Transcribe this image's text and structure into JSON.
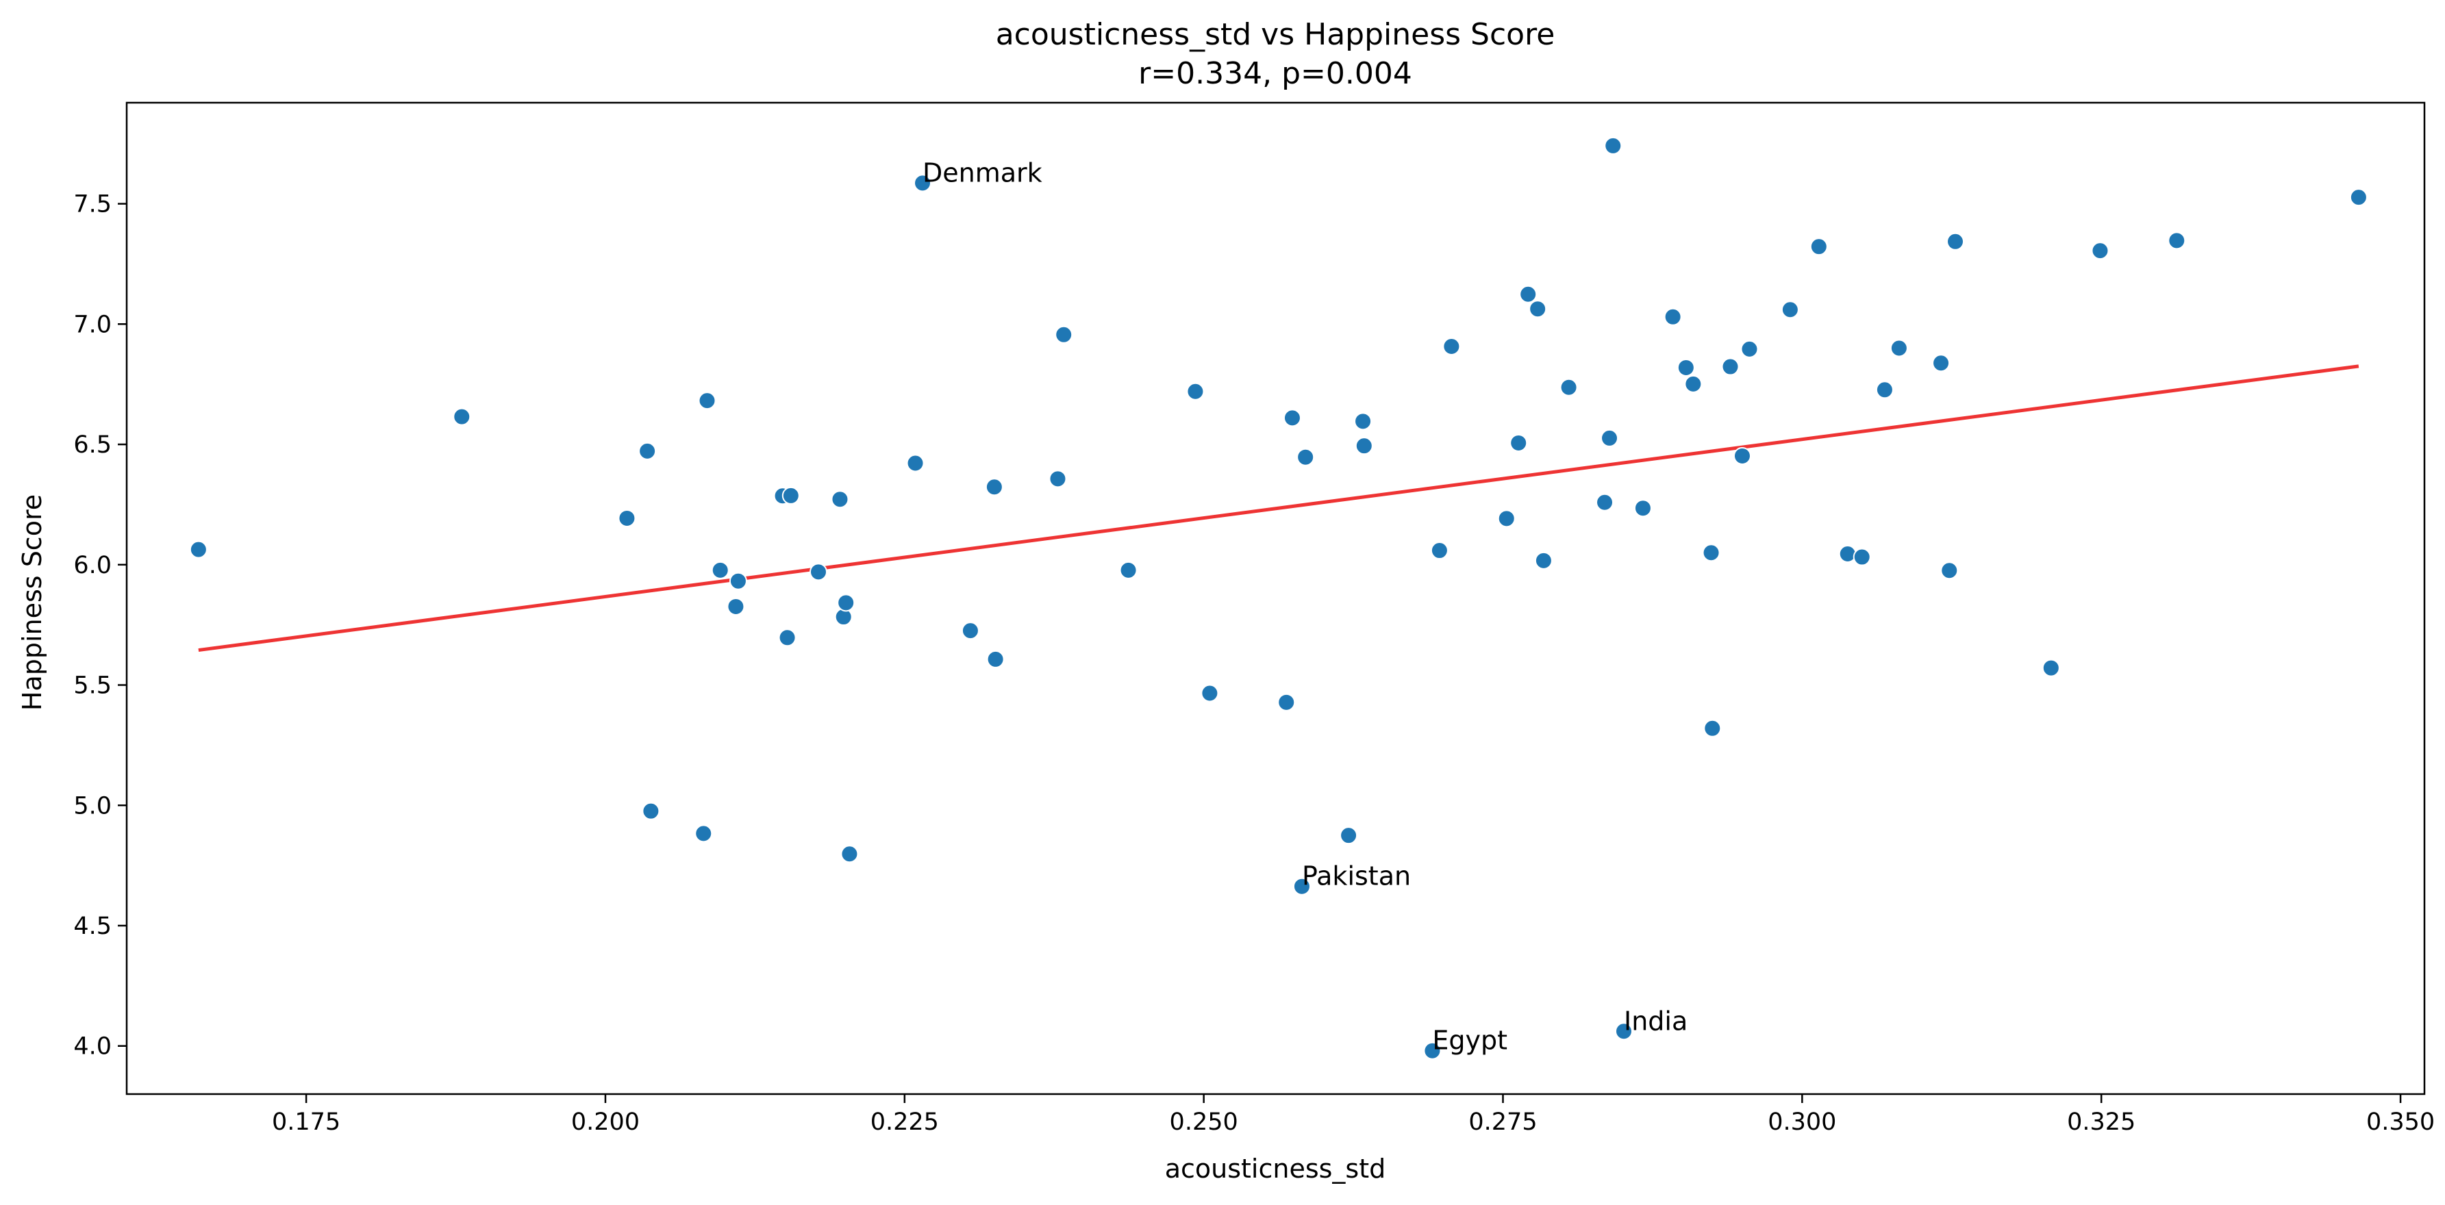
{
  "chart_data": {
    "type": "scatter",
    "title": "acousticness_std vs Happiness Score",
    "subtitle": "r=0.334, p=0.004",
    "xlabel": "acousticness_std",
    "ylabel": "Happiness Score",
    "xlim": [
      0.16,
      0.352
    ],
    "ylim": [
      3.8,
      7.92
    ],
    "xticks": [
      0.175,
      0.2,
      0.225,
      0.25,
      0.275,
      0.3,
      0.325,
      0.35
    ],
    "xtick_labels": [
      "0.175",
      "0.200",
      "0.225",
      "0.250",
      "0.275",
      "0.300",
      "0.325",
      "0.350"
    ],
    "yticks": [
      4.0,
      4.5,
      5.0,
      5.5,
      6.0,
      6.5,
      7.0,
      7.5
    ],
    "ytick_labels": [
      "4.0",
      "4.5",
      "5.0",
      "5.5",
      "6.0",
      "6.5",
      "7.0",
      "7.5"
    ],
    "grid": false,
    "colors": {
      "points": "#1f77b4",
      "trend": "#ee3333"
    },
    "trendline": {
      "x": [
        0.166,
        0.3465
      ],
      "y": [
        5.645,
        6.825
      ]
    },
    "annotations": [
      {
        "label": "Denmark",
        "x": 0.2265,
        "y": 7.586
      },
      {
        "label": "Pakistan",
        "x": 0.2582,
        "y": 4.663
      },
      {
        "label": "Egypt",
        "x": 0.2691,
        "y": 3.98
      },
      {
        "label": "India",
        "x": 0.2851,
        "y": 4.061
      }
    ],
    "points": [
      {
        "x": 0.166,
        "y": 6.063
      },
      {
        "x": 0.188,
        "y": 6.615
      },
      {
        "x": 0.2018,
        "y": 6.193
      },
      {
        "x": 0.2035,
        "y": 6.472
      },
      {
        "x": 0.2038,
        "y": 4.976
      },
      {
        "x": 0.2082,
        "y": 4.883
      },
      {
        "x": 0.2085,
        "y": 6.682
      },
      {
        "x": 0.2096,
        "y": 5.977
      },
      {
        "x": 0.2109,
        "y": 5.826
      },
      {
        "x": 0.2111,
        "y": 5.932
      },
      {
        "x": 0.2148,
        "y": 6.286
      },
      {
        "x": 0.2152,
        "y": 5.697
      },
      {
        "x": 0.2155,
        "y": 6.287
      },
      {
        "x": 0.2178,
        "y": 5.97
      },
      {
        "x": 0.2196,
        "y": 6.272
      },
      {
        "x": 0.2199,
        "y": 5.783
      },
      {
        "x": 0.2201,
        "y": 5.842
      },
      {
        "x": 0.2204,
        "y": 4.798
      },
      {
        "x": 0.2259,
        "y": 6.422
      },
      {
        "x": 0.2265,
        "y": 7.586
      },
      {
        "x": 0.2305,
        "y": 5.726
      },
      {
        "x": 0.2325,
        "y": 6.323
      },
      {
        "x": 0.2326,
        "y": 5.607
      },
      {
        "x": 0.2378,
        "y": 6.357
      },
      {
        "x": 0.2383,
        "y": 6.956
      },
      {
        "x": 0.2437,
        "y": 5.977
      },
      {
        "x": 0.2493,
        "y": 6.72
      },
      {
        "x": 0.2505,
        "y": 5.466
      },
      {
        "x": 0.2569,
        "y": 5.428
      },
      {
        "x": 0.2574,
        "y": 6.61
      },
      {
        "x": 0.2582,
        "y": 4.663
      },
      {
        "x": 0.2585,
        "y": 6.447
      },
      {
        "x": 0.2621,
        "y": 4.875
      },
      {
        "x": 0.2633,
        "y": 6.596
      },
      {
        "x": 0.2634,
        "y": 6.494
      },
      {
        "x": 0.2691,
        "y": 3.98
      },
      {
        "x": 0.2697,
        "y": 6.059
      },
      {
        "x": 0.2707,
        "y": 6.907
      },
      {
        "x": 0.2753,
        "y": 6.192
      },
      {
        "x": 0.2763,
        "y": 6.506
      },
      {
        "x": 0.2771,
        "y": 7.124
      },
      {
        "x": 0.2779,
        "y": 7.063
      },
      {
        "x": 0.2784,
        "y": 6.017
      },
      {
        "x": 0.2805,
        "y": 6.737
      },
      {
        "x": 0.2835,
        "y": 6.259
      },
      {
        "x": 0.2839,
        "y": 6.526
      },
      {
        "x": 0.2842,
        "y": 7.741
      },
      {
        "x": 0.2851,
        "y": 4.061
      },
      {
        "x": 0.2867,
        "y": 6.235
      },
      {
        "x": 0.2892,
        "y": 7.03
      },
      {
        "x": 0.2903,
        "y": 6.819
      },
      {
        "x": 0.2909,
        "y": 6.751
      },
      {
        "x": 0.2924,
        "y": 6.05
      },
      {
        "x": 0.2925,
        "y": 5.32
      },
      {
        "x": 0.294,
        "y": 6.823
      },
      {
        "x": 0.295,
        "y": 6.452
      },
      {
        "x": 0.2956,
        "y": 6.896
      },
      {
        "x": 0.299,
        "y": 7.06
      },
      {
        "x": 0.3014,
        "y": 7.322
      },
      {
        "x": 0.3038,
        "y": 6.045
      },
      {
        "x": 0.305,
        "y": 6.032
      },
      {
        "x": 0.3069,
        "y": 6.727
      },
      {
        "x": 0.3081,
        "y": 6.9
      },
      {
        "x": 0.3116,
        "y": 6.838
      },
      {
        "x": 0.3123,
        "y": 5.976
      },
      {
        "x": 0.3128,
        "y": 7.343
      },
      {
        "x": 0.3208,
        "y": 5.571
      },
      {
        "x": 0.3249,
        "y": 7.305
      },
      {
        "x": 0.3313,
        "y": 7.347
      },
      {
        "x": 0.3465,
        "y": 7.527
      }
    ]
  }
}
